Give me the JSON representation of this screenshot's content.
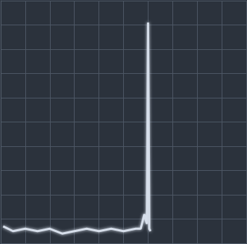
{
  "chart_data": {
    "type": "line",
    "x": [
      0.1,
      0.5,
      1.0,
      1.5,
      2.0,
      2.5,
      3.0,
      3.5,
      4.0,
      4.5,
      5.0,
      5.5,
      5.7,
      5.85,
      5.95,
      6.0,
      6.05,
      6.1
    ],
    "values": [
      0.7,
      0.5,
      0.6,
      0.5,
      0.6,
      0.4,
      0.5,
      0.6,
      0.5,
      0.6,
      0.5,
      0.6,
      0.6,
      1.2,
      0.8,
      9.1,
      0.6,
      0.5
    ],
    "color": "#d6deea",
    "xlim": [
      0,
      10
    ],
    "xticks": [
      0,
      1,
      2,
      3,
      4,
      5,
      6,
      7,
      8,
      9,
      10
    ],
    "ylim": [
      0,
      10
    ],
    "yticks": [
      0,
      1,
      2,
      3,
      4,
      5,
      6,
      7,
      8,
      9,
      10
    ],
    "grid": true,
    "tick_labels": false
  }
}
